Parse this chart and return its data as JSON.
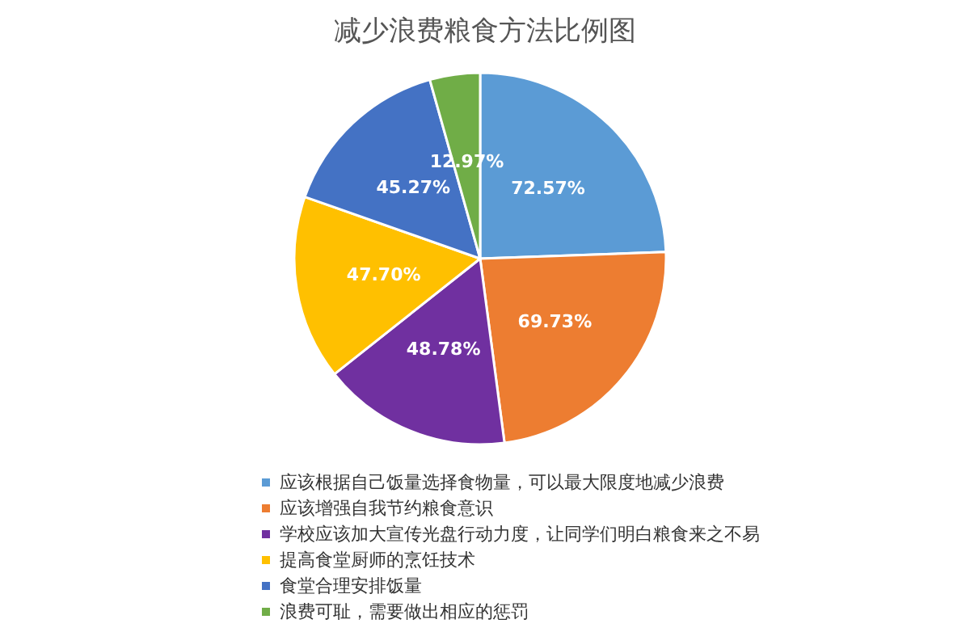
{
  "chart_data": {
    "type": "pie",
    "title": "减少浪费粮食方法比例图",
    "categories": [
      "应该根据自己饭量选择食物量，可以最大限度地减少浪费",
      "应该增强自我节约粮食意识",
      "学校应该加大宣传光盘行动力度，让同学们明白粮食来之不易",
      "提高食堂厨师的烹饪技术",
      "食堂合理安排饭量",
      "浪费可耻，需要做出相应的惩罚"
    ],
    "values": [
      72.57,
      69.73,
      48.78,
      47.7,
      45.27,
      12.97
    ],
    "value_labels": [
      "72.57%",
      "69.73%",
      "48.78%",
      "47.70%",
      "45.27%",
      "12.97%"
    ],
    "colors": [
      "#5b9bd5",
      "#ed7d31",
      "#7030a0",
      "#ffc000",
      "#4472c4",
      "#70ad47"
    ],
    "legend": "bottom"
  }
}
